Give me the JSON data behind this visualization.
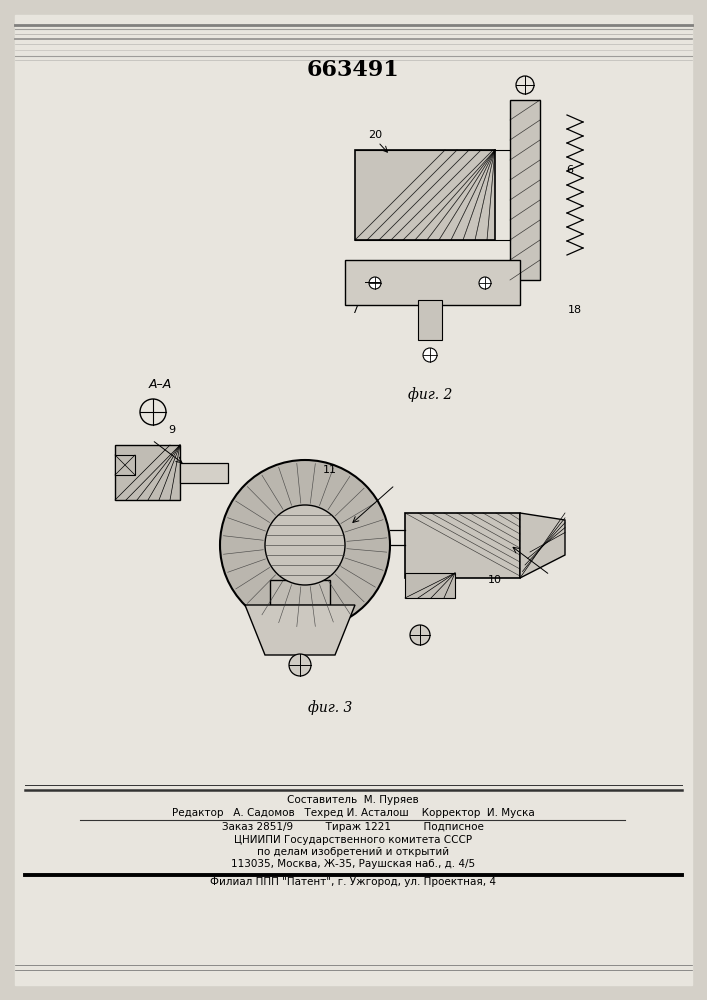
{
  "patent_number": "663491",
  "background_color": "#d4d0c8",
  "paper_color": "#e8e5de",
  "fig2_label": "фиг. 2",
  "fig3_label": "фиг. 3",
  "aa_label": "A–A",
  "footer_lines": [
    "Составитель  М. Пуряев",
    "Редактор   А. Садомов   Техред И. Асталош    Корректор  И. Муска",
    "Заказ 2851/9          Тираж 1221          Подписное",
    "ЦНИИПИ Государственного комитета СССР",
    "по делам изобретений и открытий",
    "113035, Москва, Ж-35, Раушская наб., д. 4/5",
    "Филиал ППП \"Патент\", г. Ужгород, ул. Проектная, 4"
  ]
}
